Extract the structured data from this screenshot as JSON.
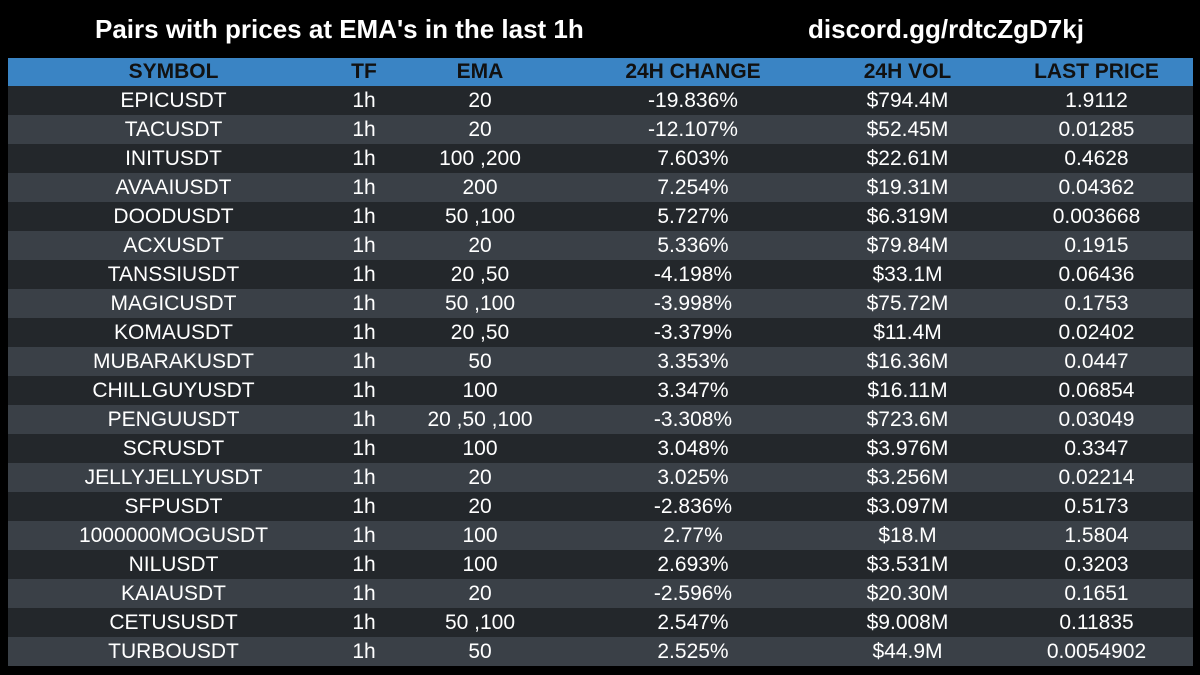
{
  "header": {
    "title": "Pairs with prices at EMA's in the last 1h",
    "discord": "discord.gg/rdtcZgD7kj"
  },
  "table": {
    "columns": [
      "SYMBOL",
      "TF",
      "EMA",
      "24H CHANGE",
      "24H VOL",
      "LAST PRICE"
    ],
    "rows": [
      [
        "EPICUSDT",
        "1h",
        "20",
        "-19.836%",
        "$794.4M",
        "1.9112"
      ],
      [
        "TACUSDT",
        "1h",
        "20",
        "-12.107%",
        "$52.45M",
        "0.01285"
      ],
      [
        "INITUSDT",
        "1h",
        "100 ,200",
        "7.603%",
        "$22.61M",
        "0.4628"
      ],
      [
        "AVAAIUSDT",
        "1h",
        "200",
        "7.254%",
        "$19.31M",
        "0.04362"
      ],
      [
        "DOODUSDT",
        "1h",
        "50 ,100",
        "5.727%",
        "$6.319M",
        "0.003668"
      ],
      [
        "ACXUSDT",
        "1h",
        "20",
        "5.336%",
        "$79.84M",
        "0.1915"
      ],
      [
        "TANSSIUSDT",
        "1h",
        "20 ,50",
        "-4.198%",
        "$33.1M",
        "0.06436"
      ],
      [
        "MAGICUSDT",
        "1h",
        "50 ,100",
        "-3.998%",
        "$75.72M",
        "0.1753"
      ],
      [
        "KOMAUSDT",
        "1h",
        "20 ,50",
        "-3.379%",
        "$11.4M",
        "0.02402"
      ],
      [
        "MUBARAKUSDT",
        "1h",
        "50",
        "3.353%",
        "$16.36M",
        "0.0447"
      ],
      [
        "CHILLGUYUSDT",
        "1h",
        "100",
        "3.347%",
        "$16.11M",
        "0.06854"
      ],
      [
        "PENGUUSDT",
        "1h",
        "20 ,50 ,100",
        "-3.308%",
        "$723.6M",
        "0.03049"
      ],
      [
        "SCRUSDT",
        "1h",
        "100",
        "3.048%",
        "$3.976M",
        "0.3347"
      ],
      [
        "JELLYJELLYUSDT",
        "1h",
        "20",
        "3.025%",
        "$3.256M",
        "0.02214"
      ],
      [
        "SFPUSDT",
        "1h",
        "20",
        "-2.836%",
        "$3.097M",
        "0.5173"
      ],
      [
        "1000000MOGUSDT",
        "1h",
        "100",
        "2.77%",
        "$18.M",
        "1.5804"
      ],
      [
        "NILUSDT",
        "1h",
        "100",
        "2.693%",
        "$3.531M",
        "0.3203"
      ],
      [
        "KAIAUSDT",
        "1h",
        "20",
        "-2.596%",
        "$20.30M",
        "0.1651"
      ],
      [
        "CETUSUSDT",
        "1h",
        "50 ,100",
        "2.547%",
        "$9.008M",
        "0.11835"
      ],
      [
        "TURBOUSDT",
        "1h",
        "50",
        "2.525%",
        "$44.9M",
        "0.0054902"
      ]
    ]
  },
  "colors": {
    "background": "#000000",
    "header_bg": "#3a84c4",
    "row_dark": "#23272b",
    "row_light": "#3a4047",
    "text": "#ffffff"
  }
}
